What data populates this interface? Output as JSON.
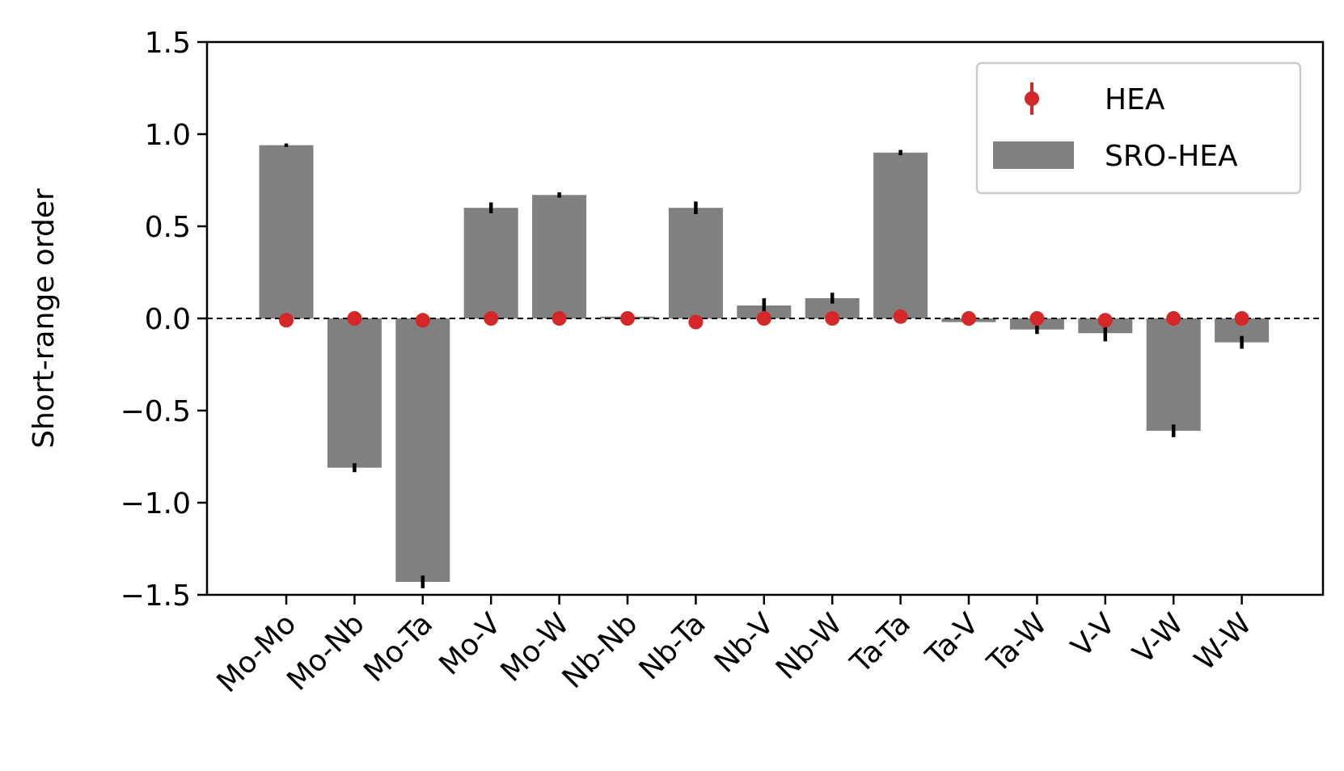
{
  "chart_data": {
    "type": "bar",
    "ylabel": "Short-range order",
    "xlabel": "",
    "ylim": [
      -1.5,
      1.5
    ],
    "yticks": [
      1.5,
      1.0,
      0.5,
      0.0,
      -0.5,
      -1.0,
      -1.5
    ],
    "ytick_labels": [
      "1.5",
      "1.0",
      "0.5",
      "0.0",
      "−0.5",
      "−1.0",
      "−1.5"
    ],
    "categories": [
      "Mo-Mo",
      "Mo-Nb",
      "Mo-Ta",
      "Mo-V",
      "Mo-W",
      "Nb-Nb",
      "Nb-Ta",
      "Nb-V",
      "Nb-W",
      "Ta-Ta",
      "Ta-V",
      "Ta-W",
      "V-V",
      "V-W",
      "W-W"
    ],
    "series": [
      {
        "name": "SRO-HEA",
        "kind": "bar",
        "color": "#808080",
        "values": [
          0.94,
          -0.81,
          -1.43,
          0.6,
          0.67,
          0.01,
          0.6,
          0.07,
          0.11,
          0.9,
          -0.02,
          -0.06,
          -0.08,
          -0.61,
          -0.13
        ],
        "errors": [
          0.005,
          0.02,
          0.03,
          0.025,
          0.01,
          0.01,
          0.03,
          0.035,
          0.025,
          0.01,
          0.01,
          0.02,
          0.04,
          0.03,
          0.03
        ]
      },
      {
        "name": "HEA",
        "kind": "point",
        "color": "#d62728",
        "values": [
          -0.01,
          0.0,
          -0.01,
          0.0,
          0.0,
          0.0,
          -0.02,
          0.0,
          0.0,
          0.01,
          0.0,
          0.0,
          -0.01,
          0.0,
          0.0
        ],
        "errors": [
          0.005,
          0.005,
          0.005,
          0.005,
          0.005,
          0.005,
          0.005,
          0.005,
          0.005,
          0.005,
          0.005,
          0.005,
          0.005,
          0.005,
          0.005
        ]
      }
    ],
    "reference_line": {
      "y": 0,
      "style": "dashed",
      "color": "#000000"
    },
    "legend": {
      "placement": "top-right",
      "entries": [
        "HEA",
        "SRO-HEA"
      ]
    },
    "grid": false
  }
}
